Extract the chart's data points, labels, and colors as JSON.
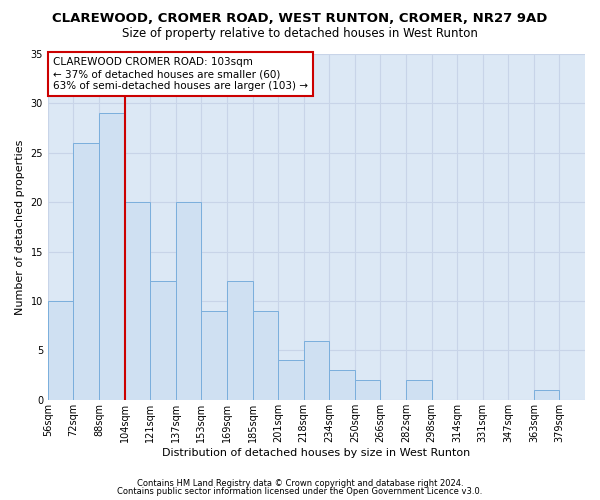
{
  "title": "CLAREWOOD, CROMER ROAD, WEST RUNTON, CROMER, NR27 9AD",
  "subtitle": "Size of property relative to detached houses in West Runton",
  "xlabel": "Distribution of detached houses by size in West Runton",
  "ylabel": "Number of detached properties",
  "footnote1": "Contains HM Land Registry data © Crown copyright and database right 2024.",
  "footnote2": "Contains public sector information licensed under the Open Government Licence v3.0.",
  "bar_labels": [
    "56sqm",
    "72sqm",
    "88sqm",
    "104sqm",
    "121sqm",
    "137sqm",
    "153sqm",
    "169sqm",
    "185sqm",
    "201sqm",
    "218sqm",
    "234sqm",
    "250sqm",
    "266sqm",
    "282sqm",
    "298sqm",
    "314sqm",
    "331sqm",
    "347sqm",
    "363sqm",
    "379sqm"
  ],
  "bar_values": [
    10,
    26,
    29,
    20,
    12,
    20,
    9,
    12,
    9,
    4,
    6,
    3,
    2,
    0,
    2,
    0,
    0,
    0,
    0,
    1,
    0
  ],
  "bar_color": "#cfe0f2",
  "bar_edge_color": "#7aaedc",
  "reference_line_color": "#cc0000",
  "annotation_label": "CLAREWOOD CROMER ROAD: 103sqm",
  "annotation_line1": "← 37% of detached houses are smaller (60)",
  "annotation_line2": "63% of semi-detached houses are larger (103) →",
  "annotation_box_facecolor": "#ffffff",
  "annotation_box_edgecolor": "#cc0000",
  "ylim": [
    0,
    35
  ],
  "yticks": [
    0,
    5,
    10,
    15,
    20,
    25,
    30,
    35
  ],
  "grid_color": "#c8d4e8",
  "plot_bg_color": "#dce8f5",
  "title_fontsize": 9.5,
  "subtitle_fontsize": 8.5,
  "axis_label_fontsize": 8,
  "tick_fontsize": 7,
  "annotation_fontsize": 7.5,
  "footnote_fontsize": 6
}
